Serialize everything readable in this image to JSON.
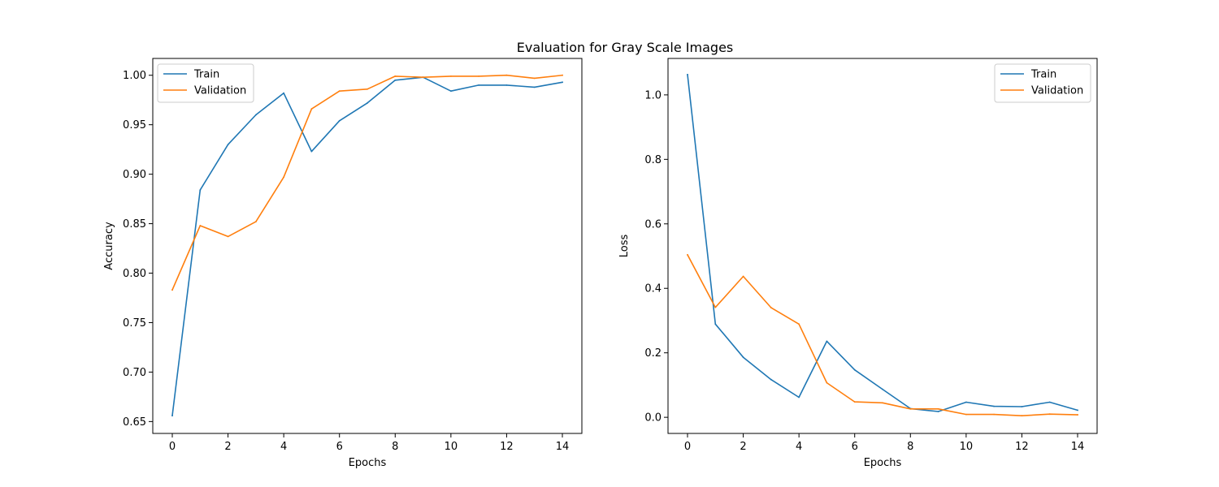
{
  "figure": {
    "suptitle": "Evaluation for Gray Scale Images"
  },
  "colors": {
    "train": "#1f77b4",
    "validation": "#ff7f0e"
  },
  "chart_data": [
    {
      "type": "line",
      "xlabel": "Epochs",
      "ylabel": "Accuracy",
      "xlim": [
        -0.7,
        14.7
      ],
      "ylim": [
        0.638,
        1.017
      ],
      "xticks": [
        0,
        2,
        4,
        6,
        8,
        10,
        12,
        14
      ],
      "yticks": [
        0.65,
        0.7,
        0.75,
        0.8,
        0.85,
        0.9,
        0.95,
        1.0
      ],
      "ytick_labels": [
        "0.65",
        "0.70",
        "0.75",
        "0.80",
        "0.85",
        "0.90",
        "0.95",
        "1.00"
      ],
      "legend_loc": "upper left",
      "x": [
        0,
        1,
        2,
        3,
        4,
        5,
        6,
        7,
        8,
        9,
        10,
        11,
        12,
        13,
        14
      ],
      "series": [
        {
          "name": "Train",
          "color_key": "train",
          "values": [
            0.656,
            0.884,
            0.93,
            0.96,
            0.982,
            0.923,
            0.954,
            0.972,
            0.995,
            0.998,
            0.984,
            0.99,
            0.99,
            0.988,
            0.993
          ]
        },
        {
          "name": "Validation",
          "color_key": "validation",
          "values": [
            0.783,
            0.848,
            0.837,
            0.852,
            0.897,
            0.966,
            0.984,
            0.986,
            0.999,
            0.998,
            0.999,
            0.999,
            1.0,
            0.997,
            1.0
          ]
        }
      ]
    },
    {
      "type": "line",
      "xlabel": "Epochs",
      "ylabel": "Loss",
      "xlim": [
        -0.7,
        14.7
      ],
      "ylim": [
        -0.05,
        1.113
      ],
      "xticks": [
        0,
        2,
        4,
        6,
        8,
        10,
        12,
        14
      ],
      "yticks": [
        0.0,
        0.2,
        0.4,
        0.6,
        0.8,
        1.0
      ],
      "ytick_labels": [
        "0.0",
        "0.2",
        "0.4",
        "0.6",
        "0.8",
        "1.0"
      ],
      "legend_loc": "upper right",
      "x": [
        0,
        1,
        2,
        3,
        4,
        5,
        6,
        7,
        8,
        9,
        10,
        11,
        12,
        13,
        14
      ],
      "series": [
        {
          "name": "Train",
          "color_key": "train",
          "values": [
            1.063,
            0.289,
            0.186,
            0.117,
            0.062,
            0.236,
            0.147,
            0.087,
            0.027,
            0.018,
            0.047,
            0.034,
            0.033,
            0.047,
            0.022
          ]
        },
        {
          "name": "Validation",
          "color_key": "validation",
          "values": [
            0.504,
            0.341,
            0.437,
            0.34,
            0.289,
            0.107,
            0.048,
            0.045,
            0.026,
            0.026,
            0.009,
            0.009,
            0.005,
            0.01,
            0.008
          ]
        }
      ]
    }
  ]
}
